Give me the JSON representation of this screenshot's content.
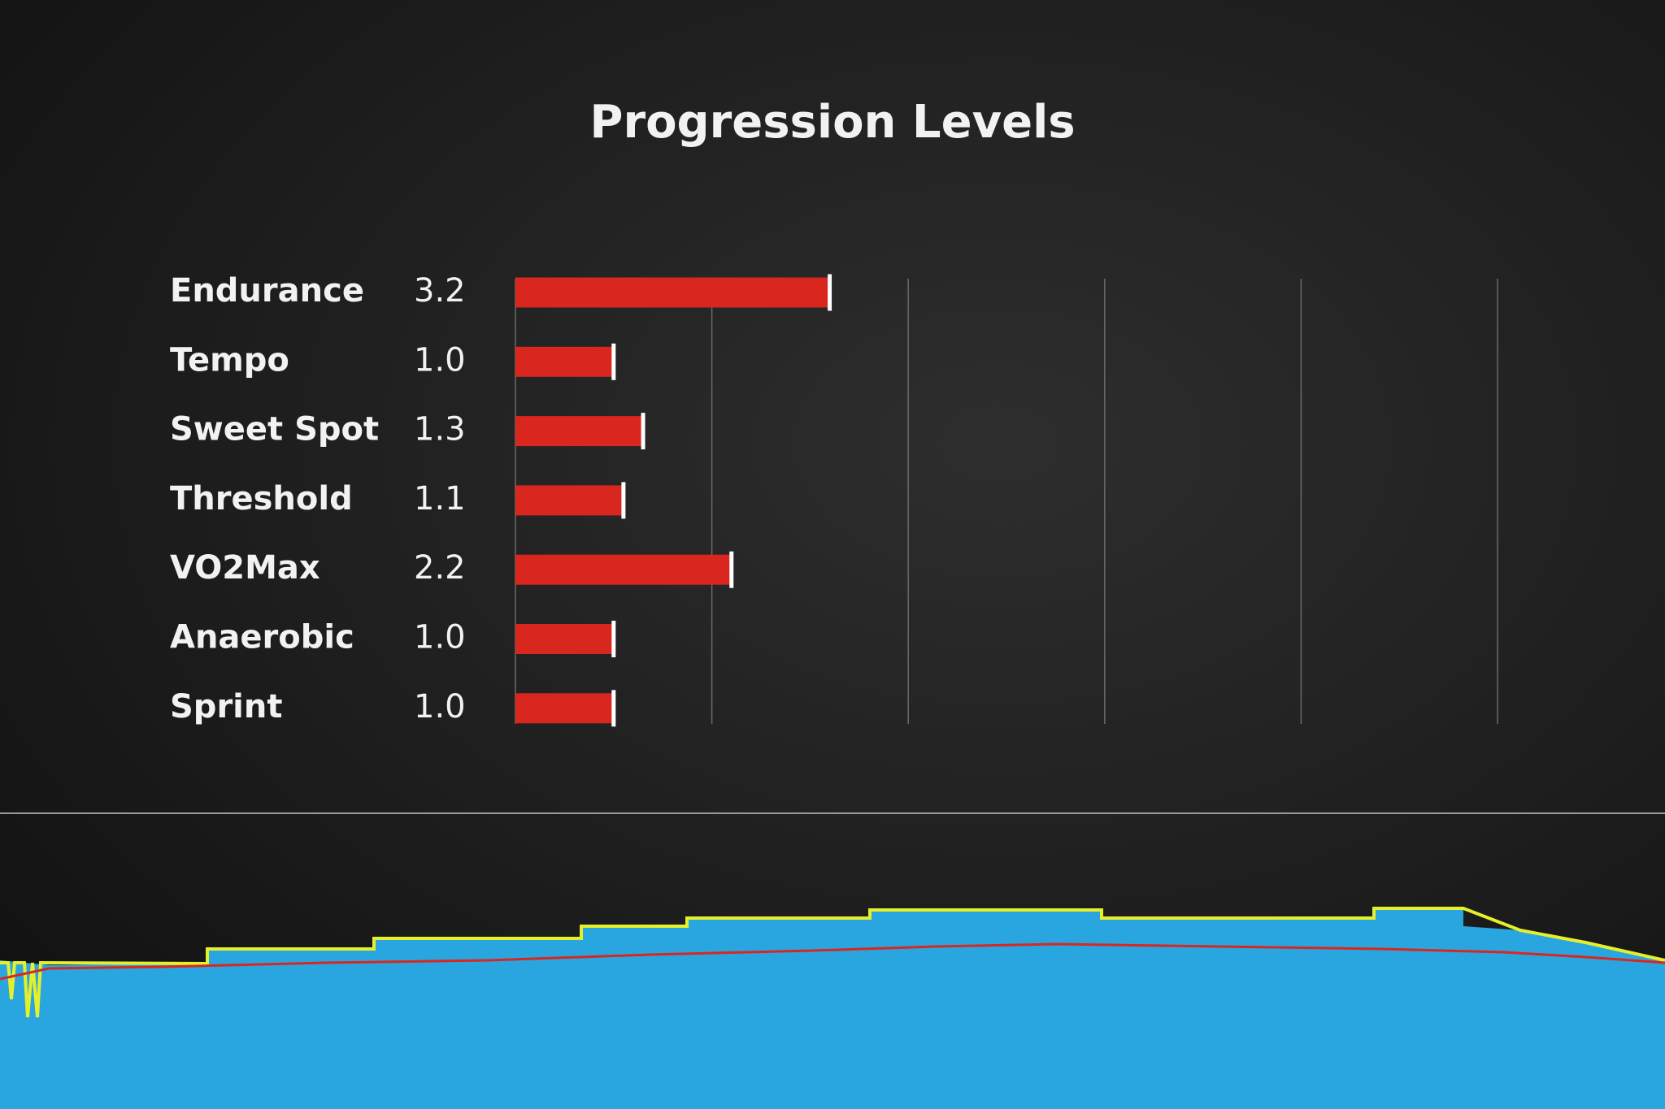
{
  "chart_data": {
    "type": "bar",
    "orientation": "horizontal",
    "title": "Progression Levels",
    "categories": [
      "Endurance",
      "Tempo",
      "Sweet Spot",
      "Threshold",
      "VO2Max",
      "Anaerobic",
      "Sprint"
    ],
    "values": [
      3.2,
      1.0,
      1.3,
      1.1,
      2.2,
      1.0,
      1.0
    ],
    "value_labels": [
      "3.2",
      "1.0",
      "1.3",
      "1.1",
      "2.2",
      "1.0",
      "1.0"
    ],
    "color": "#d9271f",
    "xlim": [
      0,
      10
    ],
    "xticks": [
      0,
      2,
      4,
      6,
      8,
      10
    ],
    "grid": true
  }
}
